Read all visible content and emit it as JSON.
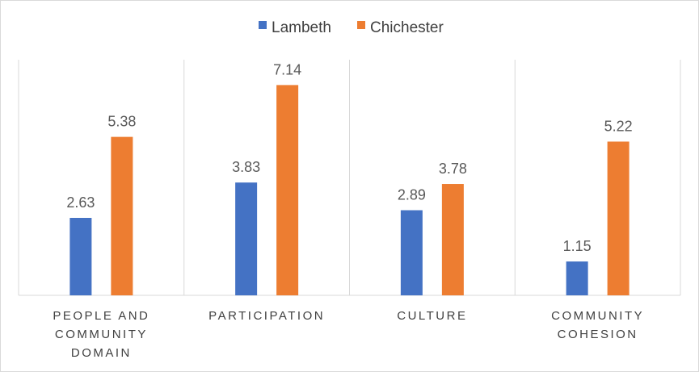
{
  "chart_data": {
    "type": "bar",
    "title": "",
    "xlabel": "",
    "ylabel": "",
    "ylim": [
      0,
      8
    ],
    "grid": false,
    "legend": "top-center",
    "categories": [
      [
        "PEOPLE AND",
        "COMMUNITY",
        "DOMAIN"
      ],
      [
        "PARTICIPATION"
      ],
      [
        "CULTURE"
      ],
      [
        "COMMUNITY",
        "COHESION"
      ]
    ],
    "series": [
      {
        "name": "Lambeth",
        "color": "#4472c4",
        "values": [
          2.63,
          3.83,
          2.89,
          1.15
        ],
        "labels": [
          "2.63",
          "3.83",
          "2.89",
          "1.15"
        ]
      },
      {
        "name": "Chichester",
        "color": "#ed7d31",
        "values": [
          5.38,
          7.14,
          3.78,
          5.22
        ],
        "labels": [
          "5.38",
          "7.14",
          "3.78",
          "5.22"
        ]
      }
    ]
  }
}
